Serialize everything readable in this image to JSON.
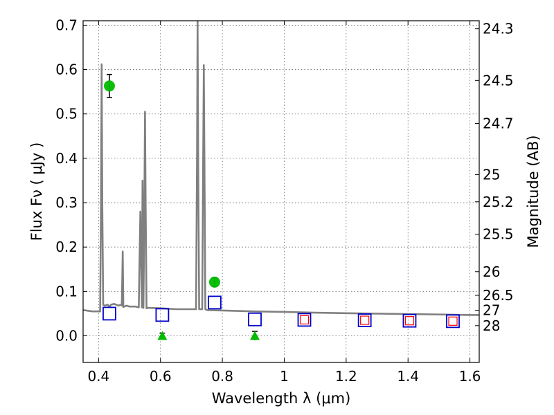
{
  "chart_data": {
    "type": "scatter",
    "xlabel": "Wavelength  λ (μm)",
    "ylabel": "Flux  Fν  ( μJy )",
    "ylabel_right": "Magnitude (AB)",
    "xlim": [
      0.35,
      1.63
    ],
    "ylim": [
      -0.06,
      0.71
    ],
    "x_ticks": [
      0.4,
      0.6,
      0.8,
      1.0,
      1.2,
      1.4,
      1.6
    ],
    "x_tick_labels": [
      "0.4",
      "0.6",
      "0.8",
      "1",
      "1.2",
      "1.4",
      "1.6"
    ],
    "y_ticks": [
      0.0,
      0.1,
      0.2,
      0.3,
      0.4,
      0.5,
      0.6,
      0.7
    ],
    "y_tick_labels": [
      "0.0",
      "0.1",
      "0.2",
      "0.3",
      "0.4",
      "0.5",
      "0.6",
      "0.7"
    ],
    "right_ticks": [
      {
        "label": "24.3",
        "mag": 24.3
      },
      {
        "label": "24.5",
        "mag": 24.5
      },
      {
        "label": "24.7",
        "mag": 24.7
      },
      {
        "label": "25",
        "mag": 25.0
      },
      {
        "label": "25.2",
        "mag": 25.2
      },
      {
        "label": "25.5",
        "mag": 25.5
      },
      {
        "label": "26",
        "mag": 26.0
      },
      {
        "label": "26.5",
        "mag": 26.5
      },
      {
        "label": "27",
        "mag": 27.0
      },
      {
        "label": "28",
        "mag": 28.0
      }
    ],
    "grid": true,
    "colors": {
      "model": "#808080",
      "observed": "#00bb00",
      "model_photometry": "#0000cc",
      "model_photometry_inner": "#ff0000"
    },
    "series": [
      {
        "kind": "line",
        "x": [
          0.35,
          0.38,
          0.405,
          0.408,
          0.41,
          0.412,
          0.415,
          0.42,
          0.43,
          0.435,
          0.44,
          0.45,
          0.465,
          0.47,
          0.475,
          0.478,
          0.48,
          0.49,
          0.5,
          0.52,
          0.53,
          0.533,
          0.535,
          0.537,
          0.54,
          0.542,
          0.545,
          0.547,
          0.55,
          0.552,
          0.555,
          0.56,
          0.6,
          0.65,
          0.7,
          0.715,
          0.718,
          0.72,
          0.722,
          0.725,
          0.73,
          0.735,
          0.738,
          0.74,
          0.742,
          0.745,
          0.75,
          0.8,
          0.9,
          1.0,
          1.1,
          1.2,
          1.3,
          1.4,
          1.5,
          1.6,
          1.63
        ],
        "y": [
          0.058,
          0.055,
          0.055,
          0.3,
          0.612,
          0.3,
          0.07,
          0.068,
          0.07,
          0.065,
          0.07,
          0.072,
          0.068,
          0.07,
          0.068,
          0.19,
          0.065,
          0.068,
          0.066,
          0.066,
          0.064,
          0.2,
          0.28,
          0.2,
          0.064,
          0.35,
          0.063,
          0.2,
          0.505,
          0.3,
          0.062,
          0.063,
          0.062,
          0.06,
          0.06,
          0.06,
          0.4,
          0.71,
          0.4,
          0.06,
          0.06,
          0.06,
          0.4,
          0.61,
          0.4,
          0.06,
          0.058,
          0.057,
          0.055,
          0.054,
          0.052,
          0.051,
          0.05,
          0.049,
          0.048,
          0.047,
          0.047
        ]
      },
      {
        "kind": "points",
        "points": [
          {
            "x": 0.435,
            "y": 0.563,
            "err": 0.026
          },
          {
            "x": 0.775,
            "y": 0.121,
            "err": 0.01
          }
        ]
      },
      {
        "kind": "upper_limits",
        "points": [
          {
            "x": 0.606,
            "y": 0.0,
            "err": 0.006
          },
          {
            "x": 0.905,
            "y": 0.0,
            "err": 0.01
          }
        ]
      },
      {
        "kind": "model_photometry",
        "points": [
          {
            "x": 0.435,
            "y": 0.05
          },
          {
            "x": 0.606,
            "y": 0.047
          },
          {
            "x": 0.775,
            "y": 0.075
          },
          {
            "x": 0.905,
            "y": 0.037
          },
          {
            "x": 1.065,
            "y": 0.036
          },
          {
            "x": 1.26,
            "y": 0.035
          },
          {
            "x": 1.405,
            "y": 0.034
          },
          {
            "x": 1.545,
            "y": 0.033
          }
        ]
      },
      {
        "kind": "model_photometry_inner",
        "points": [
          {
            "x": 1.065,
            "y": 0.036
          },
          {
            "x": 1.26,
            "y": 0.035
          },
          {
            "x": 1.405,
            "y": 0.034
          },
          {
            "x": 1.545,
            "y": 0.033
          }
        ]
      }
    ]
  }
}
